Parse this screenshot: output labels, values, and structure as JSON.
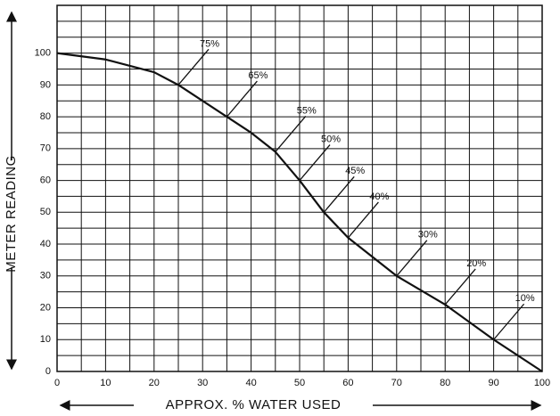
{
  "chart_data": {
    "type": "line",
    "xlabel": "APPROX. % WATER USED",
    "ylabel": "METER READING",
    "x": [
      0,
      10,
      20,
      25,
      35,
      40,
      45,
      50,
      55,
      60,
      70,
      80,
      90,
      100
    ],
    "series": [
      {
        "color": "#111111",
        "values": [
          100,
          98,
          94,
          90,
          80,
          75,
          69,
          60,
          50,
          42,
          30,
          21,
          10,
          0
        ]
      }
    ],
    "xlim": [
      0,
      100
    ],
    "ylim": [
      0,
      115
    ],
    "xticks": [
      0,
      10,
      20,
      30,
      40,
      50,
      60,
      70,
      80,
      90,
      100
    ],
    "yticks": [
      0,
      10,
      20,
      30,
      40,
      50,
      60,
      70,
      80,
      90,
      100
    ],
    "xgrid": [
      0,
      5,
      10,
      15,
      20,
      25,
      30,
      35,
      40,
      45,
      50,
      55,
      60,
      65,
      70,
      75,
      80,
      85,
      90,
      95,
      100
    ],
    "ygrid": [
      0,
      5,
      10,
      15,
      20,
      25,
      30,
      35,
      40,
      45,
      50,
      55,
      60,
      65,
      70,
      75,
      80,
      85,
      90,
      95,
      100,
      105,
      110,
      115
    ],
    "grid": true,
    "annotations": [
      {
        "text": "75%",
        "x": 25,
        "y": 90
      },
      {
        "text": "65%",
        "x": 35,
        "y": 80
      },
      {
        "text": "55%",
        "x": 45,
        "y": 69
      },
      {
        "text": "50%",
        "x": 50,
        "y": 60
      },
      {
        "text": "45%",
        "x": 55,
        "y": 50
      },
      {
        "text": "40%",
        "x": 60,
        "y": 42
      },
      {
        "text": "30%",
        "x": 70,
        "y": 30
      },
      {
        "text": "20%",
        "x": 80,
        "y": 21
      },
      {
        "text": "10%",
        "x": 90,
        "y": 10
      }
    ]
  }
}
